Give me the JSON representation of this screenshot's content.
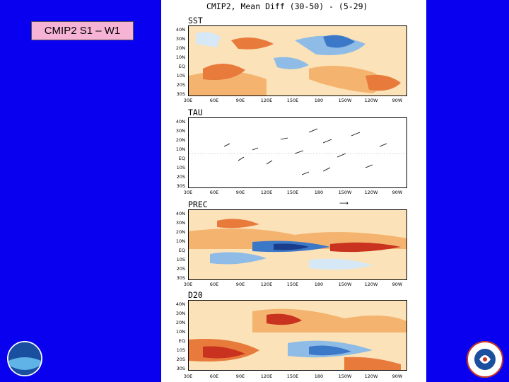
{
  "slide": {
    "title_box": "CMIP2 S1 – W1",
    "background_color": "#0a00f0",
    "title_box_color": "#f6b3d6"
  },
  "figure": {
    "title": "CMIP2, Mean Diff (30-50) - (5-29)",
    "lat_labels": [
      "40N",
      "30N",
      "20N",
      "10N",
      "EQ",
      "10S",
      "20S",
      "30S"
    ],
    "lon_labels": [
      "30E",
      "60E",
      "90E",
      "120E",
      "150E",
      "180",
      "150W",
      "120W",
      "90W"
    ],
    "panels": [
      {
        "label": "SST"
      },
      {
        "label": "TAU"
      },
      {
        "label": "PREC"
      },
      {
        "label": "D20"
      }
    ],
    "colors": {
      "strong_warm": "#c8321e",
      "warm": "#e87b3c",
      "mid_warm": "#f4b470",
      "weak_warm": "#fbe2b8",
      "weak_cool": "#d6e8f5",
      "cool": "#8ebce6",
      "strong_cool": "#3c78c8"
    }
  },
  "logos": {
    "left": "noaa-logo-icon",
    "right": "national-weather-service-logo-icon"
  }
}
